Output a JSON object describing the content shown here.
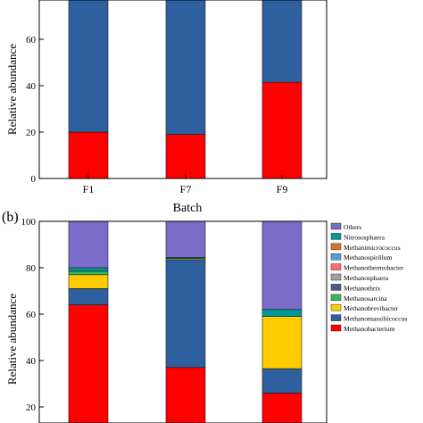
{
  "chart_data": [
    {
      "type": "bar",
      "stacked": true,
      "panel_label": "",
      "categories": [
        "F1",
        "F7",
        "F9"
      ],
      "xlabel": "Batch",
      "ylabel": "Relative abundance",
      "ylim": [
        0,
        100
      ],
      "yticks": [
        0,
        20,
        40,
        60
      ],
      "series": [
        {
          "name": "",
          "color": "#ff0000",
          "values": [
            20,
            19,
            41.5
          ]
        },
        {
          "name": "",
          "color": "#2e5f9e",
          "values": [
            80,
            81,
            58.5
          ]
        }
      ]
    },
    {
      "type": "bar",
      "stacked": true,
      "panel_label": "(b)",
      "categories": [
        "F1",
        "F7",
        "F9"
      ],
      "xlabel": "",
      "ylabel": "Relative abundance",
      "ylim": [
        0,
        100
      ],
      "yticks": [
        20,
        40,
        60,
        80,
        100
      ],
      "legend_position": "right",
      "series": [
        {
          "name": "Methanobacterium",
          "color": "#ff0000",
          "values": [
            64,
            37,
            26
          ]
        },
        {
          "name": "Methanomassiliicoccus",
          "color": "#2e5f9e",
          "values": [
            7,
            46.5,
            10.5
          ]
        },
        {
          "name": "Methanobrevibacter",
          "color": "#ffcc00",
          "values": [
            6,
            0.5,
            22.5
          ]
        },
        {
          "name": "Methanosarcina",
          "color": "#3cb55b",
          "values": [
            1.5,
            0,
            0
          ]
        },
        {
          "name": "Methanothrix",
          "color": "#4a5a8c",
          "values": [
            0,
            0,
            0
          ]
        },
        {
          "name": "Methanosphaera",
          "color": "#a0a0a0",
          "values": [
            0,
            0,
            0
          ]
        },
        {
          "name": "Methanothermobacter",
          "color": "#ff6e6e",
          "values": [
            0,
            0,
            0
          ]
        },
        {
          "name": "Methanospirillum",
          "color": "#5b9bd5",
          "values": [
            0,
            0,
            0
          ]
        },
        {
          "name": "Methanimicrococcus",
          "color": "#e07020",
          "values": [
            0,
            0,
            0
          ]
        },
        {
          "name": "Nitrososphaera",
          "color": "#009999",
          "values": [
            1.5,
            0.5,
            3
          ]
        },
        {
          "name": "Others",
          "color": "#7a6cc8",
          "values": [
            20,
            15.5,
            38
          ]
        }
      ]
    }
  ]
}
